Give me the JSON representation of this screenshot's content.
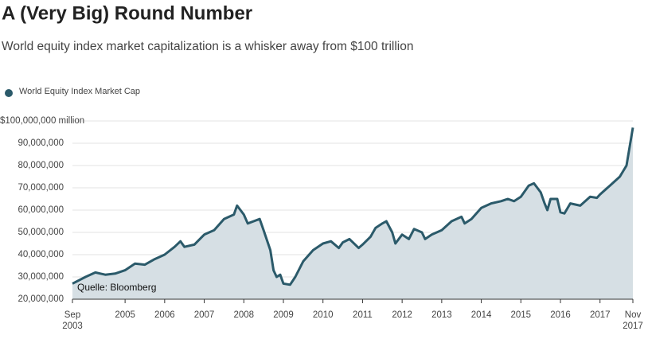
{
  "chart_data": {
    "type": "area",
    "title": "A (Very Big) Round Number",
    "subtitle": "World equity index market capitalization is a whisker away from $100 trillion",
    "annotation": "Quelle: Bloomberg",
    "x": [
      2003.67,
      2004.0,
      2004.25,
      2004.5,
      2004.75,
      2005.0,
      2005.25,
      2005.5,
      2005.75,
      2006.0,
      2006.25,
      2006.4,
      2006.5,
      2006.75,
      2007.0,
      2007.25,
      2007.5,
      2007.75,
      2007.83,
      2008.0,
      2008.1,
      2008.25,
      2008.4,
      2008.5,
      2008.67,
      2008.75,
      2008.83,
      2008.92,
      2009.0,
      2009.17,
      2009.3,
      2009.5,
      2009.75,
      2010.0,
      2010.2,
      2010.4,
      2010.5,
      2010.67,
      2010.9,
      2011.0,
      2011.2,
      2011.33,
      2011.5,
      2011.6,
      2011.75,
      2011.83,
      2012.0,
      2012.17,
      2012.3,
      2012.5,
      2012.58,
      2012.75,
      2013.0,
      2013.25,
      2013.5,
      2013.58,
      2013.75,
      2014.0,
      2014.25,
      2014.5,
      2014.67,
      2014.83,
      2015.0,
      2015.2,
      2015.33,
      2015.5,
      2015.6,
      2015.67,
      2015.75,
      2015.92,
      2016.0,
      2016.1,
      2016.25,
      2016.5,
      2016.75,
      2016.92,
      2017.0,
      2017.25,
      2017.5,
      2017.67,
      2017.83
    ],
    "series": [
      {
        "name": "World Equity Index Market Cap",
        "color": "#2b5a6a",
        "fill": "#d6dfe4",
        "values": [
          27000000,
          30000000,
          32000000,
          31000000,
          31500000,
          33000000,
          36000000,
          35500000,
          38000000,
          40000000,
          43500000,
          46000000,
          43500000,
          44500000,
          49000000,
          51000000,
          56000000,
          58000000,
          62000000,
          58000000,
          54000000,
          55000000,
          56000000,
          51000000,
          42000000,
          33000000,
          30000000,
          31000000,
          27000000,
          26500000,
          30000000,
          37000000,
          42000000,
          45000000,
          46000000,
          43000000,
          45500000,
          47000000,
          43000000,
          44500000,
          48000000,
          52000000,
          54000000,
          55000000,
          50000000,
          45000000,
          49000000,
          47000000,
          51500000,
          50000000,
          47000000,
          49000000,
          51000000,
          55000000,
          57000000,
          54000000,
          56000000,
          61000000,
          63000000,
          64000000,
          65000000,
          64000000,
          66000000,
          71000000,
          72000000,
          68000000,
          63000000,
          60000000,
          65000000,
          65000000,
          59000000,
          58500000,
          63000000,
          62000000,
          66000000,
          65500000,
          67000000,
          71000000,
          75000000,
          80000000,
          97000000
        ]
      }
    ],
    "xlim": [
      2003.67,
      2017.83
    ],
    "xticks": [
      {
        "value": 2003.67,
        "label": "Sep 2003"
      },
      2005,
      2006,
      2007,
      2008,
      2009,
      2010,
      2011,
      2012,
      2013,
      2014,
      2015,
      2016,
      2017,
      {
        "value": 2017.83,
        "label": "Nov 2017"
      }
    ],
    "ylim": [
      20000000,
      100000000
    ],
    "yticks": [
      {
        "value": 20000000,
        "label": "20,000,000"
      },
      {
        "value": 30000000,
        "label": "30,000,000"
      },
      {
        "value": 40000000,
        "label": "40,000,000"
      },
      {
        "value": 50000000,
        "label": "50,000,000"
      },
      {
        "value": 60000000,
        "label": "60,000,000"
      },
      {
        "value": 70000000,
        "label": "70,000,000"
      },
      {
        "value": 80000000,
        "label": "80,000,000"
      },
      {
        "value": 90000000,
        "label": "90,000,000"
      },
      {
        "value": 100000000,
        "label": "$100,000,000 million"
      }
    ],
    "grid": true,
    "legend": "top-left"
  }
}
